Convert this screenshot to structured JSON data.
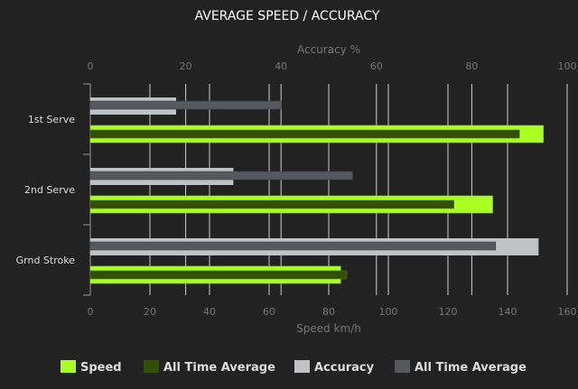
{
  "chart_data": {
    "type": "bar",
    "orientation": "horizontal",
    "title": "AVERAGE SPEED / ACCURACY",
    "categories": [
      "1st Serve",
      "2nd Serve",
      "Grnd Stroke"
    ],
    "top_axis": {
      "label": "Accuracy %",
      "range": [
        0,
        100
      ],
      "ticks": [
        0,
        20,
        40,
        60,
        80,
        100
      ]
    },
    "bottom_axis": {
      "label": "Speed km/h",
      "range": [
        0,
        160
      ],
      "ticks": [
        0,
        20,
        40,
        60,
        80,
        100,
        120,
        140,
        160
      ]
    },
    "grid": true,
    "legend_position": "bottom",
    "series": [
      {
        "name": "Speed",
        "axis": "speed",
        "color": "#aaff22",
        "values": [
          152,
          135,
          84
        ]
      },
      {
        "name": "All Time Average",
        "axis": "speed",
        "color": "#335000",
        "values": [
          144,
          122,
          86
        ]
      },
      {
        "name": "Accuracy",
        "axis": "accuracy",
        "color": "#bfc3c6",
        "values": [
          18,
          30,
          94
        ]
      },
      {
        "name": "All Time Average",
        "axis": "accuracy",
        "color": "#545960",
        "values": [
          40,
          55,
          85
        ]
      }
    ]
  }
}
